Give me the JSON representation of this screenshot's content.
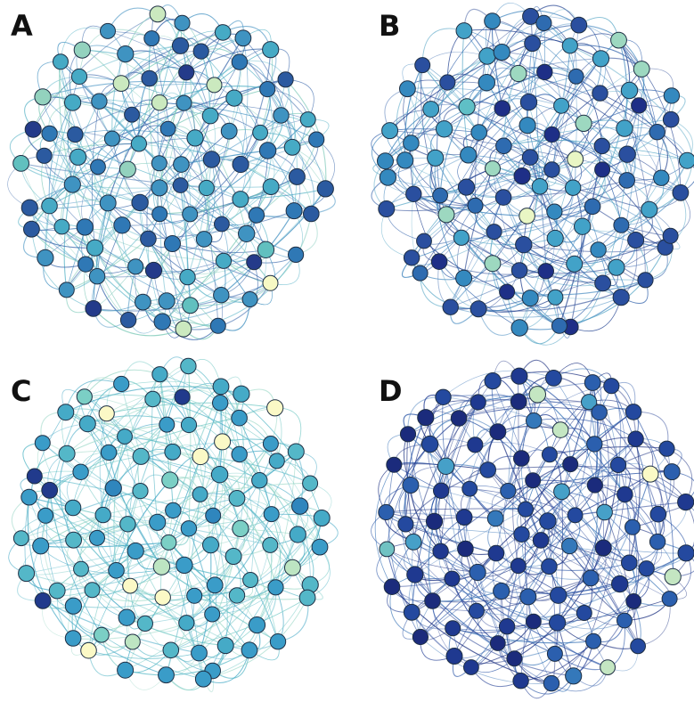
{
  "figure": {
    "panels": [
      {
        "label": "A",
        "seed": 11,
        "edge_colors": [
          "#2f5fa6",
          "#3f8fc0",
          "#5ab4c7",
          "#7fcab9"
        ],
        "node_colors": [
          "#243b8a",
          "#2b5aa0",
          "#2f78b5",
          "#3f93c1",
          "#46aac5",
          "#61c0bf",
          "#93d2be",
          "#cbe9bf",
          "#f7f9c4"
        ]
      },
      {
        "label": "B",
        "seed": 23,
        "edge_colors": [
          "#1f3f8f",
          "#2d5ea9",
          "#3a82bc",
          "#58a7c6"
        ],
        "node_colors": [
          "#1e2f87",
          "#2a4f9f",
          "#2e6bb0",
          "#3489bf",
          "#42a2c8",
          "#5fbfc6",
          "#9dd8c0",
          "#e9f6c4"
        ]
      },
      {
        "label": "C",
        "seed": 37,
        "edge_colors": [
          "#3fa6c4",
          "#58b8c7",
          "#79cbc7",
          "#9ad7c6"
        ],
        "node_colors": [
          "#213a8c",
          "#2f86bd",
          "#3a9cc8",
          "#45aac7",
          "#54b7c8",
          "#7bcfc5",
          "#bde5c2",
          "#fbf9c6"
        ]
      },
      {
        "label": "D",
        "seed": 49,
        "edge_colors": [
          "#1b2f80",
          "#243f94",
          "#2e58a8",
          "#3b76b8"
        ],
        "node_colors": [
          "#1b2b7c",
          "#1f3990",
          "#24499f",
          "#2b5fae",
          "#3478ba",
          "#46a0c8",
          "#70c2c3",
          "#c4e6c2",
          "#fbfac6"
        ]
      }
    ]
  }
}
